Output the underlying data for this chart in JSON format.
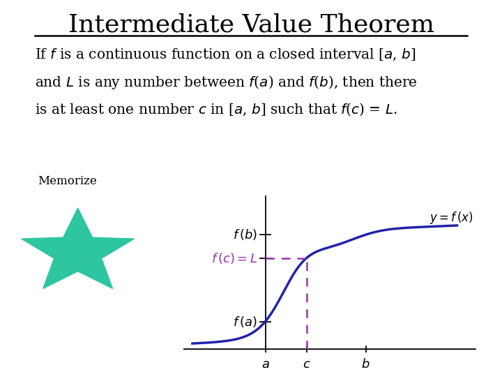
{
  "title": "Intermediate Value Theorem",
  "background_color": "#ffffff",
  "text_color": "#000000",
  "star_color": "#2dc6a0",
  "curve_color": "#2222aa",
  "dashed_color": "#9933aa",
  "title_fontsize": 26,
  "text_fontsize": 14.5,
  "memorize_fontsize": 12,
  "graph_label_fontsize": 13,
  "curve_label_fontsize": 12,
  "x_a": 0.0,
  "x_c": 0.9,
  "x_b": 2.2,
  "baseline_y": -2.8,
  "xlim": [
    -1.8,
    4.8
  ],
  "ylim": [
    -3.5,
    4.2
  ]
}
